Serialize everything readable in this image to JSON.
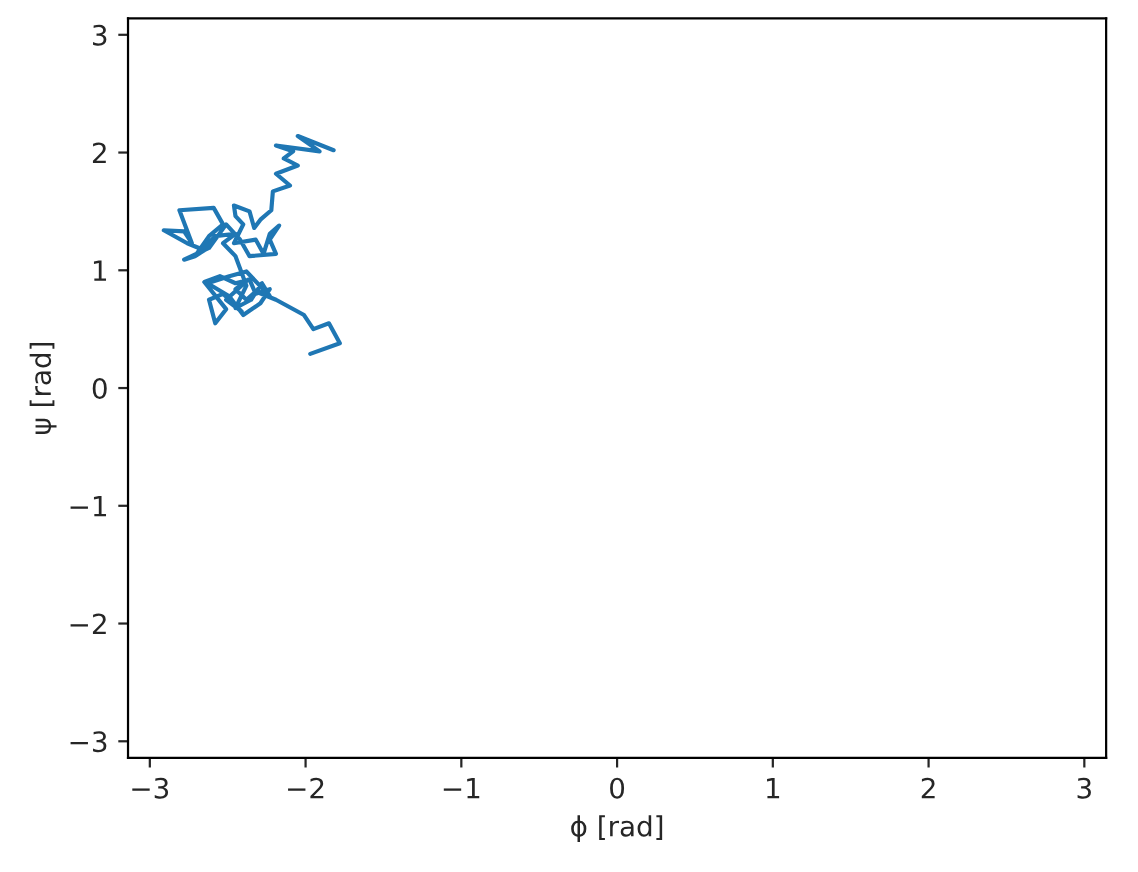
{
  "chart_data": {
    "type": "line",
    "xlabel": "ϕ [rad]",
    "ylabel": "ψ [rad]",
    "xlim": [
      -3.14,
      3.14
    ],
    "ylim": [
      -3.14,
      3.14
    ],
    "xticks": [
      -3,
      -2,
      -1,
      0,
      1,
      2,
      3
    ],
    "yticks": [
      -3,
      -2,
      -1,
      0,
      1,
      2,
      3
    ],
    "grid": false,
    "line_style": "solid",
    "series": [
      {
        "color": "#1f77b4",
        "x": [
          -1.97,
          -1.78,
          -1.85,
          -1.95,
          -2.01,
          -2.19,
          -2.32,
          -2.38,
          -2.45,
          -2.37,
          -2.51,
          -2.41,
          -2.53,
          -2.62,
          -2.58,
          -2.51,
          -2.65,
          -2.55,
          -2.45,
          -2.36,
          -2.32,
          -2.23,
          -2.29,
          -2.4,
          -2.49,
          -2.63,
          -2.49,
          -2.38,
          -2.23,
          -2.28,
          -2.35,
          -2.45,
          -2.38,
          -2.45,
          -2.53,
          -2.45,
          -2.58,
          -2.71,
          -2.65,
          -2.76,
          -2.91,
          -2.78,
          -2.73,
          -2.81,
          -2.59,
          -2.53,
          -2.62,
          -2.71,
          -2.78,
          -2.62,
          -2.51,
          -2.42,
          -2.36,
          -2.19,
          -2.23,
          -2.17,
          -2.23,
          -2.27,
          -2.32,
          -2.46,
          -2.4,
          -2.45,
          -2.46,
          -2.36,
          -2.33,
          -2.29,
          -2.22,
          -2.21,
          -2.1,
          -2.19,
          -2.05,
          -2.14,
          -2.08,
          -2.19,
          -1.91,
          -2.05,
          -1.82
        ],
        "values": [
          0.29,
          0.38,
          0.55,
          0.5,
          0.62,
          0.75,
          0.82,
          0.75,
          0.84,
          0.92,
          0.75,
          0.65,
          0.8,
          0.75,
          0.55,
          0.67,
          0.9,
          0.95,
          0.89,
          0.92,
          0.8,
          0.84,
          0.72,
          0.62,
          0.78,
          0.89,
          0.95,
          0.99,
          0.78,
          0.89,
          0.75,
          0.68,
          0.87,
          1.12,
          1.23,
          1.31,
          1.29,
          1.12,
          1.17,
          1.23,
          1.34,
          1.33,
          1.23,
          1.51,
          1.53,
          1.39,
          1.29,
          1.12,
          1.09,
          1.19,
          1.39,
          1.26,
          1.12,
          1.14,
          1.26,
          1.38,
          1.31,
          1.14,
          1.26,
          1.23,
          1.39,
          1.46,
          1.55,
          1.5,
          1.36,
          1.43,
          1.51,
          1.67,
          1.72,
          1.82,
          1.89,
          1.95,
          2.01,
          2.06,
          2.01,
          2.14,
          2.02
        ]
      }
    ]
  }
}
